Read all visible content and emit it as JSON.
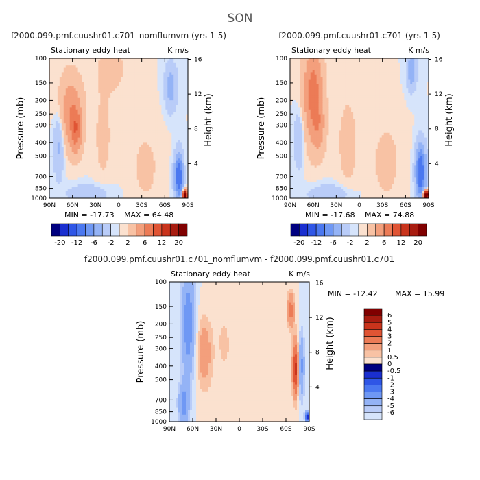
{
  "figure_title": "SON",
  "colorscale": {
    "blue": [
      "#000080",
      "#1a2fd0",
      "#2f56e6",
      "#4b78f0",
      "#6f98f4",
      "#94b3f6",
      "#b9ccf8",
      "#d6e4fb"
    ],
    "red": [
      "#fbe1cf",
      "#f8c2a4",
      "#f39f7c",
      "#ec7b56",
      "#e05434",
      "#c9341c",
      "#a81c10",
      "#800000"
    ],
    "zero": "#ffffff"
  },
  "chart_data": [
    {
      "id": "panel1",
      "type": "heatmap",
      "title": "f2000.099.pmf.cuushr01.c701_nomflumvm (yrs 1-5)",
      "left_label": "Stationary eddy heat",
      "right_label": "K m/s",
      "ylabel": "Pressure (mb)",
      "ylabel_right": "Height (km)",
      "x_ticks": [
        "90N",
        "60N",
        "30N",
        "0",
        "30S",
        "60S",
        "90S"
      ],
      "y_ticks": [
        "100",
        "150",
        "200",
        "250",
        "300",
        "400",
        "500",
        "700",
        "850",
        "1000"
      ],
      "height_ticks": [
        "4",
        "8",
        "12",
        "16"
      ],
      "min_label": "MIN = -17.73",
      "max_label": "MAX = 64.48",
      "colorbar_labels": [
        "-20",
        "-12",
        "-6",
        "-2",
        "2",
        "6",
        "12",
        "20"
      ]
    },
    {
      "id": "panel2",
      "type": "heatmap",
      "title": "f2000.099.pmf.cuushr01.c701 (yrs 1-5)",
      "left_label": "Stationary eddy heat",
      "right_label": "K m/s",
      "ylabel": "Pressure (mb)",
      "ylabel_right": "Height (km)",
      "x_ticks": [
        "90N",
        "60N",
        "30N",
        "0",
        "30S",
        "60S",
        "90S"
      ],
      "y_ticks": [
        "100",
        "150",
        "200",
        "250",
        "300",
        "400",
        "500",
        "700",
        "850",
        "1000"
      ],
      "height_ticks": [
        "4",
        "8",
        "12",
        "16"
      ],
      "min_label": "MIN = -17.68",
      "max_label": "MAX = 74.88",
      "colorbar_labels": [
        "-20",
        "-12",
        "-6",
        "-2",
        "2",
        "6",
        "12",
        "20"
      ]
    },
    {
      "id": "panel3",
      "type": "heatmap",
      "title": "f2000.099.pmf.cuushr01.c701_nomflumvm - f2000.099.pmf.cuushr01.c701",
      "left_label": "Stationary eddy heat",
      "right_label": "K m/s",
      "ylabel": "Pressure (mb)",
      "ylabel_right": "Height (km)",
      "x_ticks": [
        "90N",
        "60N",
        "30N",
        "0",
        "30S",
        "60S",
        "90S"
      ],
      "y_ticks": [
        "100",
        "150",
        "200",
        "250",
        "300",
        "400",
        "500",
        "700",
        "850",
        "1000"
      ],
      "height_ticks": [
        "4",
        "8",
        "12",
        "16"
      ],
      "min_label": "MIN = -12.42",
      "max_label": "MAX =  15.99",
      "colorbar_labels": [
        "6",
        "5",
        "4",
        "3",
        "2",
        "1",
        "0.5",
        "0",
        "-0.5",
        "-1",
        "-2",
        "-3",
        "-4",
        "-5",
        "-6"
      ]
    }
  ]
}
